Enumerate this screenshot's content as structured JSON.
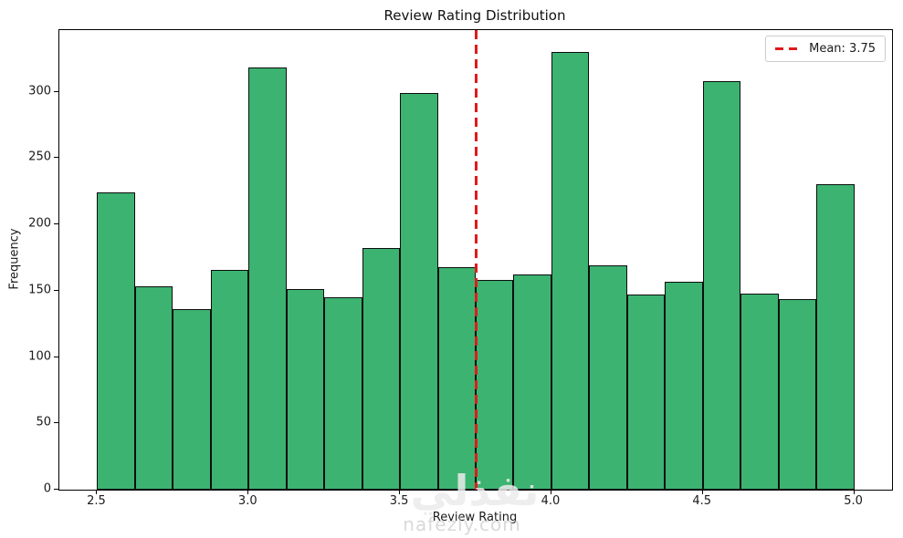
{
  "chart_data": {
    "type": "bar",
    "subtype": "histogram",
    "title": "Review Rating Distribution",
    "xlabel": "Review Rating",
    "ylabel": "Frequency",
    "bin_start": 2.5,
    "bin_width": 0.125,
    "bin_edges": [
      2.5,
      2.625,
      2.75,
      2.875,
      3.0,
      3.125,
      3.25,
      3.375,
      3.5,
      3.625,
      3.75,
      3.875,
      4.0,
      4.125,
      4.25,
      4.375,
      4.5,
      4.625,
      4.75,
      4.875,
      5.0
    ],
    "values": [
      224,
      153,
      136,
      166,
      318,
      151,
      145,
      182,
      299,
      168,
      158,
      162,
      330,
      169,
      147,
      157,
      308,
      148,
      144,
      230
    ],
    "xlim": [
      2.375,
      5.125
    ],
    "ylim": [
      0,
      346.5
    ],
    "xtick_labels": [
      "2.5",
      "3.0",
      "3.5",
      "4.0",
      "4.5",
      "5.0"
    ],
    "xtick_values": [
      2.5,
      3.0,
      3.5,
      4.0,
      4.5,
      5.0
    ],
    "ytick_labels": [
      "0",
      "50",
      "100",
      "150",
      "200",
      "250",
      "300"
    ],
    "ytick_values": [
      0,
      50,
      100,
      150,
      200,
      250,
      300
    ],
    "grid": false,
    "mean_line": {
      "value": 3.75,
      "style": "dashed"
    },
    "legend": {
      "position": "upper right",
      "entries": [
        {
          "label": "Mean: 3.75",
          "marker": "red-dashed-line"
        }
      ]
    },
    "colors": {
      "bar_fill": "#3CB371",
      "bar_edge": "#0d0d0d",
      "mean_line": "#DF1B1B",
      "text": "#1a1a1a",
      "legend_border": "#cccccc",
      "background": "#ffffff"
    }
  },
  "watermark": {
    "arabic_text": "نفذلي",
    "site_text": "nafezly.com"
  }
}
